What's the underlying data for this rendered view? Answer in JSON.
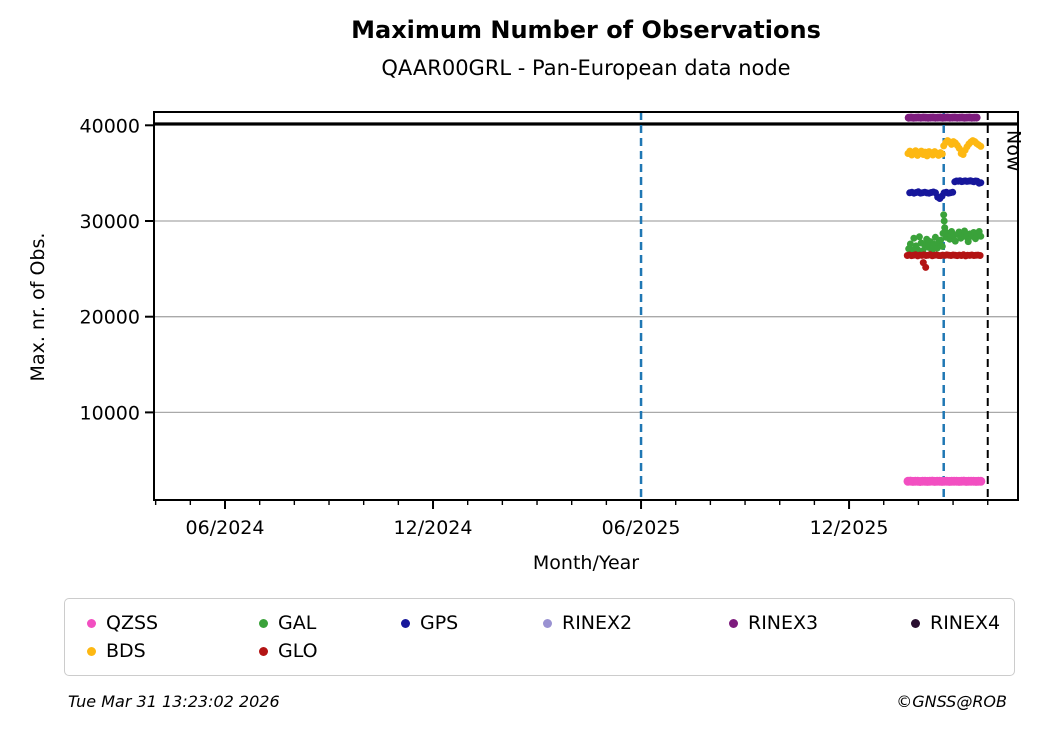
{
  "title": "Maximum Number of Observations",
  "subtitle": "QAAR00GRL - Pan-European data node",
  "footer": {
    "timestamp": "Tue Mar 31 13:23:02 2026",
    "credit": "©GNSS@ROB"
  },
  "chart_data": {
    "type": "scatter",
    "title": "Maximum Number of Observations",
    "subtitle": "QAAR00GRL - Pan-European data node",
    "xlabel": "Month/Year",
    "ylabel": "Max. nr. of Obs.",
    "x_axis": {
      "tick_labels": [
        "06/2024",
        "12/2024",
        "06/2025",
        "12/2025"
      ],
      "tick_months": [
        0,
        6,
        12,
        18
      ],
      "minor_tick_every_months": 1,
      "range_months": [
        -2.05,
        22.87
      ],
      "epoch_of_month_zero": "06/2024"
    },
    "y_axis": {
      "ticks": [
        10000,
        20000,
        30000,
        40000
      ],
      "range": [
        850,
        41390
      ],
      "grid": true,
      "grid_color": "#a9a9a9"
    },
    "annotations": {
      "hline": {
        "y": 40150,
        "color": "#000000",
        "width": 3
      },
      "vlines": [
        {
          "x_month": 12.0,
          "color": "#1f77b4",
          "style": "dashed",
          "width": 2.5
        },
        {
          "x_month": 20.73,
          "color": "#1f77b4",
          "style": "dashed",
          "width": 2.5
        },
        {
          "x_month": 22.0,
          "color": "#000000",
          "style": "dashed",
          "width": 2,
          "label": "Now"
        }
      ],
      "now_label": "Now"
    },
    "legend": {
      "position": "bottom",
      "items": [
        {
          "label": "QZSS",
          "color": "#f24fc1"
        },
        {
          "label": "GAL",
          "color": "#3aa23a"
        },
        {
          "label": "GPS",
          "color": "#17179b"
        },
        {
          "label": "RINEX2",
          "color": "#9a92d2"
        },
        {
          "label": "RINEX3",
          "color": "#7e1c7e"
        },
        {
          "label": "RINEX4",
          "color": "#2a0f30"
        },
        {
          "label": "BDS",
          "color": "#fdb813"
        },
        {
          "label": "GLO",
          "color": "#b31414"
        }
      ]
    },
    "series": [
      {
        "name": "RINEX3",
        "color": "#7e1c7e",
        "marker_radius": 4,
        "points": [
          [
            19.72,
            40790
          ],
          [
            19.79,
            40810
          ],
          [
            19.86,
            40780
          ],
          [
            19.93,
            40800
          ],
          [
            20.0,
            40820
          ],
          [
            20.07,
            40790
          ],
          [
            20.14,
            40810
          ],
          [
            20.21,
            40800
          ],
          [
            20.28,
            40780
          ],
          [
            20.35,
            40800
          ],
          [
            20.42,
            40820
          ],
          [
            20.49,
            40790
          ],
          [
            20.56,
            40800
          ],
          [
            20.63,
            40810
          ],
          [
            20.7,
            40780
          ],
          [
            20.77,
            40800
          ],
          [
            20.84,
            40820
          ],
          [
            20.91,
            40790
          ],
          [
            20.98,
            40800
          ],
          [
            21.05,
            40810
          ],
          [
            21.12,
            40790
          ],
          [
            21.19,
            40800
          ],
          [
            21.26,
            40820
          ],
          [
            21.33,
            40780
          ],
          [
            21.4,
            40800
          ],
          [
            21.47,
            40810
          ],
          [
            21.54,
            40790
          ],
          [
            21.61,
            40800
          ],
          [
            21.68,
            40800
          ]
        ]
      },
      {
        "name": "BDS",
        "color": "#fdb813",
        "marker_radius": 3.5,
        "points": [
          [
            19.7,
            37050
          ],
          [
            19.755,
            37300
          ],
          [
            19.81,
            36900
          ],
          [
            19.865,
            37150
          ],
          [
            19.92,
            37350
          ],
          [
            19.975,
            36850
          ],
          [
            20.03,
            37050
          ],
          [
            20.085,
            37300
          ],
          [
            20.14,
            36950
          ],
          [
            20.195,
            37200
          ],
          [
            20.25,
            36800
          ],
          [
            20.305,
            37250
          ],
          [
            20.36,
            37100
          ],
          [
            20.415,
            36900
          ],
          [
            20.47,
            37250
          ],
          [
            20.525,
            37050
          ],
          [
            20.58,
            36850
          ],
          [
            20.635,
            37150
          ],
          [
            20.69,
            37000
          ],
          [
            20.73,
            37850
          ],
          [
            20.786,
            38200
          ],
          [
            20.842,
            38400
          ],
          [
            20.898,
            38250
          ],
          [
            20.954,
            38000
          ],
          [
            21.01,
            38300
          ],
          [
            21.066,
            38150
          ],
          [
            21.122,
            37900
          ],
          [
            21.178,
            37600
          ],
          [
            21.234,
            37050
          ],
          [
            21.29,
            36950
          ],
          [
            21.346,
            37400
          ],
          [
            21.402,
            37750
          ],
          [
            21.458,
            38050
          ],
          [
            21.514,
            38250
          ],
          [
            21.57,
            38400
          ],
          [
            21.626,
            38300
          ],
          [
            21.682,
            38100
          ],
          [
            21.738,
            37950
          ],
          [
            21.8,
            37800
          ]
        ]
      },
      {
        "name": "GPS",
        "color": "#17179b",
        "marker_radius": 3.5,
        "points": [
          [
            19.75,
            32950
          ],
          [
            19.812,
            33000
          ],
          [
            19.874,
            32900
          ],
          [
            19.936,
            32980
          ],
          [
            19.998,
            33050
          ],
          [
            20.06,
            32920
          ],
          [
            20.122,
            32960
          ],
          [
            20.184,
            33010
          ],
          [
            20.246,
            32940
          ],
          [
            20.308,
            32900
          ],
          [
            20.37,
            32980
          ],
          [
            20.432,
            33030
          ],
          [
            20.494,
            32950
          ],
          [
            20.556,
            32500
          ],
          [
            20.618,
            32350
          ],
          [
            20.68,
            32600
          ],
          [
            20.742,
            32950
          ],
          [
            20.804,
            33000
          ],
          [
            20.866,
            32920
          ],
          [
            20.928,
            32960
          ],
          [
            20.99,
            33000
          ],
          [
            21.05,
            34100
          ],
          [
            21.1,
            34180
          ],
          [
            21.15,
            34150
          ],
          [
            21.2,
            34200
          ],
          [
            21.25,
            34120
          ],
          [
            21.3,
            34160
          ],
          [
            21.35,
            34190
          ],
          [
            21.4,
            34140
          ],
          [
            21.45,
            34170
          ],
          [
            21.5,
            34200
          ],
          [
            21.55,
            34150
          ],
          [
            21.6,
            34100
          ],
          [
            21.65,
            34180
          ],
          [
            21.7,
            34150
          ],
          [
            21.75,
            33950
          ],
          [
            21.8,
            34000
          ]
        ]
      },
      {
        "name": "GAL",
        "color": "#3aa23a",
        "marker_radius": 3.5,
        "points": [
          [
            19.72,
            27100
          ],
          [
            19.77,
            27600
          ],
          [
            19.82,
            26950
          ],
          [
            19.87,
            28200
          ],
          [
            19.93,
            27400
          ],
          [
            19.98,
            27000
          ],
          [
            20.03,
            28350
          ],
          [
            20.08,
            27700
          ],
          [
            20.13,
            26900
          ],
          [
            20.18,
            27500
          ],
          [
            20.24,
            28100
          ],
          [
            20.29,
            27250
          ],
          [
            20.34,
            27850
          ],
          [
            20.39,
            26950
          ],
          [
            20.44,
            27600
          ],
          [
            20.49,
            28300
          ],
          [
            20.54,
            27150
          ],
          [
            20.59,
            27750
          ],
          [
            20.64,
            28000
          ],
          [
            20.69,
            27350
          ],
          [
            20.71,
            28700
          ],
          [
            20.73,
            30650
          ],
          [
            20.745,
            30000
          ],
          [
            20.76,
            29300
          ],
          [
            20.77,
            28900
          ],
          [
            20.8,
            28300
          ],
          [
            20.853,
            28700
          ],
          [
            20.906,
            28100
          ],
          [
            20.959,
            28900
          ],
          [
            21.012,
            28450
          ],
          [
            21.065,
            27900
          ],
          [
            21.118,
            28600
          ],
          [
            21.171,
            28850
          ],
          [
            21.224,
            28200
          ],
          [
            21.277,
            28500
          ],
          [
            21.33,
            28950
          ],
          [
            21.383,
            28350
          ],
          [
            21.436,
            27850
          ],
          [
            21.489,
            28650
          ],
          [
            21.542,
            28400
          ],
          [
            21.595,
            28800
          ],
          [
            21.648,
            28150
          ],
          [
            21.701,
            28550
          ],
          [
            21.754,
            28900
          ],
          [
            21.8,
            28400
          ]
        ]
      },
      {
        "name": "GLO",
        "color": "#b31414",
        "marker_radius": 3.5,
        "points": [
          [
            19.68,
            26400
          ],
          [
            19.74,
            26450
          ],
          [
            19.8,
            26380
          ],
          [
            19.86,
            26420
          ],
          [
            19.92,
            26470
          ],
          [
            19.98,
            26350
          ],
          [
            20.04,
            26440
          ],
          [
            20.1,
            26410
          ],
          [
            20.14,
            25650
          ],
          [
            20.16,
            26460
          ],
          [
            20.21,
            25150
          ],
          [
            20.22,
            26390
          ],
          [
            20.28,
            26430
          ],
          [
            20.34,
            26480
          ],
          [
            20.4,
            26360
          ],
          [
            20.46,
            26420
          ],
          [
            20.52,
            26450
          ],
          [
            20.58,
            26400
          ],
          [
            20.64,
            26380
          ],
          [
            20.7,
            26440
          ],
          [
            20.76,
            26410
          ],
          [
            20.82,
            26460
          ],
          [
            20.88,
            26430
          ],
          [
            20.94,
            26390
          ],
          [
            21.0,
            26450
          ],
          [
            21.06,
            26420
          ],
          [
            21.12,
            26380
          ],
          [
            21.18,
            26440
          ],
          [
            21.24,
            26400
          ],
          [
            21.3,
            26470
          ],
          [
            21.36,
            26350
          ],
          [
            21.42,
            26430
          ],
          [
            21.48,
            26410
          ],
          [
            21.54,
            26450
          ],
          [
            21.6,
            26390
          ],
          [
            21.66,
            26420
          ],
          [
            21.72,
            26440
          ],
          [
            21.78,
            26400
          ]
        ]
      },
      {
        "name": "QZSS",
        "color": "#f24fc1",
        "marker_radius": 4.5,
        "points": [
          [
            19.7,
            2800
          ],
          [
            19.77,
            2820
          ],
          [
            19.84,
            2790
          ],
          [
            19.91,
            2810
          ],
          [
            19.98,
            2800
          ],
          [
            20.05,
            2780
          ],
          [
            20.12,
            2815
          ],
          [
            20.19,
            2800
          ],
          [
            20.26,
            2790
          ],
          [
            20.33,
            2805
          ],
          [
            20.4,
            2820
          ],
          [
            20.47,
            2795
          ],
          [
            20.54,
            2810
          ],
          [
            20.61,
            2800
          ],
          [
            20.68,
            2785
          ],
          [
            20.75,
            2800
          ],
          [
            20.82,
            2815
          ],
          [
            20.89,
            2790
          ],
          [
            20.96,
            2805
          ],
          [
            21.03,
            2800
          ],
          [
            21.1,
            2810
          ],
          [
            21.17,
            2795
          ],
          [
            21.24,
            2800
          ],
          [
            21.31,
            2820
          ],
          [
            21.38,
            2790
          ],
          [
            21.45,
            2805
          ],
          [
            21.52,
            2800
          ],
          [
            21.59,
            2810
          ],
          [
            21.66,
            2795
          ],
          [
            21.73,
            2800
          ],
          [
            21.8,
            2805
          ]
        ]
      },
      {
        "name": "RINEX2",
        "color": "#9a92d2",
        "marker_radius": 3.5,
        "points": []
      },
      {
        "name": "RINEX4",
        "color": "#2a0f30",
        "marker_radius": 3.5,
        "points": []
      }
    ]
  }
}
